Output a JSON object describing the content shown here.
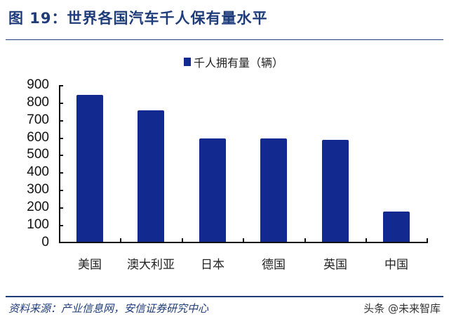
{
  "header": {
    "title": "图 19：世界各国汽车千人保有量水平"
  },
  "footer": {
    "source": "资料来源：产业信息网，安信证券研究中心",
    "watermark": "头条 @未来智库"
  },
  "colors": {
    "bar": "#12298f",
    "title": "#1f3c7a"
  },
  "chart_data": {
    "type": "bar",
    "title": "世界各国汽车千人保有量水平",
    "xlabel": "",
    "ylabel": "",
    "legend": [
      "千人拥有量（辆）"
    ],
    "legend_position": "top",
    "categories": [
      "美国",
      "澳大利亚",
      "日本",
      "德国",
      "英国",
      "中国"
    ],
    "values": [
      845,
      755,
      595,
      595,
      588,
      178
    ],
    "series": [
      {
        "name": "千人拥有量（辆）",
        "values": [
          845,
          755,
          595,
          595,
          588,
          178
        ]
      }
    ],
    "ylim": [
      0,
      900
    ],
    "yticks": [
      "0",
      "100",
      "200",
      "300",
      "400",
      "500",
      "600",
      "700",
      "800",
      "900"
    ],
    "grid": false
  }
}
